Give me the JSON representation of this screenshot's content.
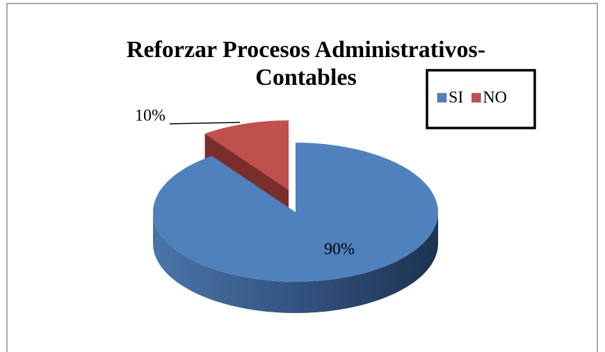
{
  "chart_data": {
    "type": "pie3d",
    "title": [
      "Reforzar Procesos Administrativos-",
      "Contables"
    ],
    "categories": [
      "SI",
      "NO"
    ],
    "values": [
      90,
      10
    ],
    "value_labels": [
      "90%",
      "10%"
    ],
    "colors": [
      "#4f81bd",
      "#c0504d"
    ],
    "legend": "top-right"
  }
}
